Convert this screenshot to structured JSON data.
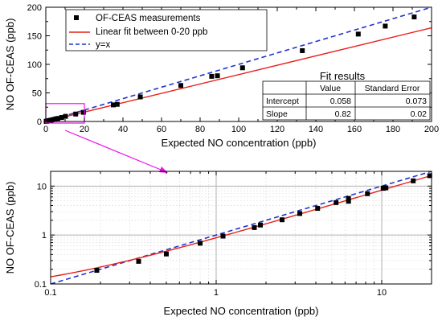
{
  "chart_data": [
    {
      "type": "scatter",
      "xlabel": "Expected NO concentration (ppb)",
      "ylabel": "NO OF-CEAS (ppb)",
      "xlim": [
        0,
        200
      ],
      "ylim": [
        0,
        200
      ],
      "xticks": [
        "0",
        "20",
        "40",
        "60",
        "80",
        "100",
        "120",
        "140",
        "160",
        "180",
        "200"
      ],
      "yticks": [
        "0",
        "50",
        "100",
        "150",
        "200"
      ],
      "grid": false,
      "legend_position": "top-left",
      "series": [
        {
          "name": "OF-CEAS measurements",
          "kind": "points",
          "color": "#000000",
          "x": [
            0.2,
            0.35,
            0.5,
            0.8,
            1.1,
            1.7,
            1.85,
            2.5,
            3.2,
            4.1,
            5.2,
            6.3,
            8.2,
            10.2,
            15.5,
            19.5,
            35,
            37,
            49,
            70,
            86,
            89,
            102,
            133,
            162,
            176,
            191
          ],
          "y": [
            0.2,
            0.3,
            0.4,
            0.7,
            1.0,
            1.5,
            1.6,
            2.1,
            2.7,
            3.5,
            4.5,
            5.3,
            7,
            9,
            13,
            16,
            29,
            30,
            43,
            63,
            79,
            80,
            94,
            124,
            153,
            167,
            183
          ]
        },
        {
          "name": "Linear fit between 0-20 ppb",
          "kind": "line",
          "color": "#e8201b",
          "x": [
            0,
            200
          ],
          "y": [
            0.058,
            164.058
          ]
        },
        {
          "name": "y=x",
          "kind": "dashed-line",
          "color": "#2233cc",
          "x": [
            0,
            200
          ],
          "y": [
            0,
            200
          ]
        }
      ],
      "fit_table": {
        "title": "Fit results",
        "headers": [
          "",
          "Value",
          "Standard Error"
        ],
        "rows": [
          [
            "Intercept",
            "0.058",
            "0.073"
          ],
          [
            "Slope",
            "0.82",
            "0.02"
          ]
        ]
      },
      "zoom_box": {
        "x": [
          0,
          20
        ],
        "y": [
          0,
          20
        ],
        "color": "#ee11ee"
      }
    },
    {
      "type": "scatter",
      "xscale": "log",
      "yscale": "log",
      "xlabel": "Expected NO concentration (ppb)",
      "ylabel": "NO OF-CEAS (ppb)",
      "xlim": [
        0.1,
        20
      ],
      "ylim": [
        0.1,
        20
      ],
      "xticks": [
        0.1,
        1,
        10
      ],
      "yticks": [
        0.1,
        1,
        10
      ],
      "grid": true,
      "series": [
        {
          "name": "OF-CEAS measurements",
          "kind": "points",
          "color": "#000000",
          "x": [
            0.19,
            0.34,
            0.5,
            0.8,
            1.1,
            1.7,
            1.85,
            2.5,
            3.2,
            4.1,
            5.3,
            6.3,
            6.3,
            8.2,
            10.2,
            10.6,
            15.5,
            19.5
          ],
          "y": [
            0.19,
            0.29,
            0.41,
            0.68,
            0.95,
            1.42,
            1.6,
            2.05,
            2.75,
            3.5,
            4.6,
            4.9,
            5.6,
            7.0,
            9.0,
            9.2,
            12.8,
            16.3
          ]
        },
        {
          "name": "Linear fit between 0-20 ppb",
          "kind": "line",
          "color": "#e8201b",
          "x_range": [
            0.1,
            20
          ],
          "slope": 0.82,
          "intercept": 0.058
        },
        {
          "name": "y=x",
          "kind": "dashed-line",
          "color": "#2233cc",
          "x_range": [
            0.1,
            20
          ]
        }
      ]
    }
  ]
}
